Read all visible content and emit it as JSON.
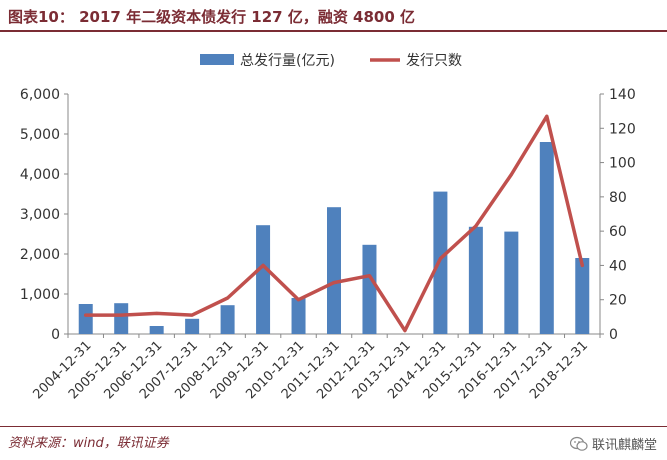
{
  "header": {
    "title": "图表10： 2017 年二级资本债发行 127 亿，融资 4800 亿"
  },
  "footer": {
    "source": "资料来源：wind，联讯证券",
    "watermark": "联讯麒麟堂"
  },
  "colors": {
    "bar": "#4f81bd",
    "line": "#c0504d",
    "accent": "#7b2c34"
  },
  "chart_data": {
    "type": "bar+line",
    "title": "2017 年二级资本债发行 127 亿，融资 4800 亿",
    "categories": [
      "2004-12-31",
      "2005-12-31",
      "2006-12-31",
      "2007-12-31",
      "2008-12-31",
      "2009-12-31",
      "2010-12-31",
      "2011-12-31",
      "2012-12-31",
      "2013-12-31",
      "2014-12-31",
      "2015-12-31",
      "2016-12-31",
      "2017-12-31",
      "2018-12-31"
    ],
    "series": [
      {
        "name": "总发行量(亿元)",
        "type": "bar",
        "axis": "left",
        "values": [
          750,
          770,
          200,
          380,
          720,
          2720,
          900,
          3170,
          2230,
          0,
          3560,
          2680,
          2560,
          4800,
          1900
        ]
      },
      {
        "name": "发行只数",
        "type": "line",
        "axis": "right",
        "values": [
          11,
          11,
          12,
          11,
          21,
          40,
          20,
          30,
          34,
          2,
          44,
          63,
          93,
          127,
          40
        ]
      }
    ],
    "y_left": {
      "min": 0,
      "max": 6000,
      "ticks": [
        0,
        1000,
        2000,
        3000,
        4000,
        5000,
        6000
      ],
      "tick_labels": [
        "0",
        "1,000",
        "2,000",
        "3,000",
        "4,000",
        "5,000",
        "6,000"
      ]
    },
    "y_right": {
      "min": 0,
      "max": 140,
      "ticks": [
        0,
        20,
        40,
        60,
        80,
        100,
        120,
        140
      ],
      "tick_labels": [
        "0",
        "20",
        "40",
        "60",
        "80",
        "100",
        "120",
        "140"
      ]
    },
    "legend": {
      "position": "top-center",
      "entries": [
        "总发行量(亿元)",
        "发行只数"
      ]
    },
    "grid": false
  }
}
